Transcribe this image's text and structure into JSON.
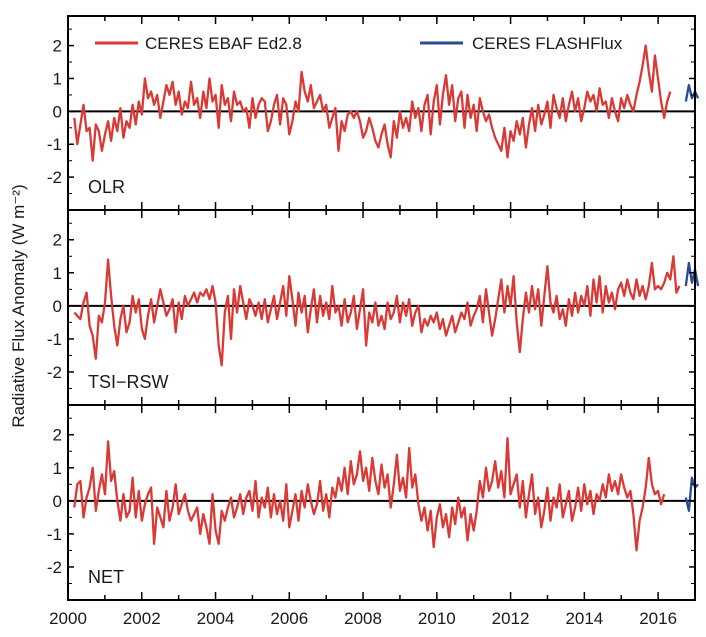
{
  "chart_data": {
    "type": "line",
    "ylabel": "Radiative Flux Anomaly (W m⁻²)",
    "xlim": [
      2000,
      2017
    ],
    "x_ticks": [
      "2000",
      "2002",
      "2004",
      "2006",
      "2008",
      "2010",
      "2012",
      "2014",
      "2016"
    ],
    "legend": {
      "placement": "top",
      "entries": [
        {
          "label": "CERES EBAF Ed2.8",
          "color": "#d93a35"
        },
        {
          "label": "CERES FLASHFlux",
          "color": "#2b4a96"
        }
      ]
    },
    "panels": [
      {
        "name": "OLR",
        "ylim": [
          -3,
          2.9
        ],
        "y_ticks": [
          "-2",
          "-1",
          "0",
          "1",
          "2"
        ],
        "series": [
          {
            "name": "CERES EBAF Ed2.8",
            "x_start": 2000.17,
            "x_step": 0.0833,
            "values": [
              -0.2,
              -1.0,
              -0.4,
              0.2,
              -0.6,
              -0.5,
              -1.5,
              -0.4,
              -0.6,
              -1.2,
              -0.7,
              -0.3,
              -0.9,
              -0.2,
              -0.6,
              0.1,
              -0.8,
              -0.3,
              -0.5,
              0.2,
              -0.4,
              0.3,
              -0.1,
              1.0,
              0.4,
              0.6,
              0.2,
              0.5,
              -0.2,
              0.3,
              0.8,
              0.5,
              0.9,
              0.2,
              0.6,
              -0.1,
              0.3,
              0.1,
              0.9,
              0.2,
              0.4,
              -0.2,
              0.6,
              0.1,
              1.0,
              0.3,
              0.5,
              -0.5,
              0.8,
              0.2,
              0.4,
              -0.3,
              0.6,
              0.2,
              0.3,
              0.0,
              0.1,
              -0.5,
              0.4,
              -0.2,
              0.2,
              0.4,
              0.3,
              -0.6,
              -0.3,
              0.2,
              0.5,
              -0.4,
              0.4,
              0.2,
              -0.7,
              -0.3,
              0.3,
              0.0,
              1.2,
              0.6,
              0.3,
              0.8,
              0.1,
              0.3,
              0.5,
              0.0,
              0.2,
              -0.5,
              -0.2,
              0.1,
              -1.2,
              -0.3,
              -0.6,
              -0.1,
              0.0,
              -0.2,
              0.0,
              -0.3,
              -0.8,
              -0.6,
              -0.2,
              -0.5,
              -0.9,
              -1.1,
              -0.7,
              -0.4,
              -1.0,
              -1.4,
              -0.3,
              -0.8,
              0.0,
              -0.5,
              -0.2,
              -0.6,
              0.3,
              -0.2,
              0.1,
              -0.6,
              0.2,
              0.5,
              -0.7,
              0.3,
              0.8,
              -0.4,
              0.5,
              1.1,
              0.2,
              0.8,
              -0.3,
              0.4,
              0.6,
              -0.5,
              0.5,
              -0.2,
              0.2,
              -0.6,
              0.4,
              0.0,
              -0.3,
              -0.1,
              -0.5,
              -0.8,
              -1.0,
              -1.2,
              -0.5,
              -1.4,
              -0.6,
              -0.9,
              -0.3,
              -0.7,
              -0.2,
              -1.1,
              -0.4,
              0.1,
              -0.6,
              0.2,
              -0.4,
              -0.1,
              0.3,
              -0.5,
              0.5,
              0.1,
              -0.2,
              0.4,
              -0.3,
              0.2,
              0.6,
              0.0,
              0.4,
              -0.3,
              0.1,
              0.6,
              0.3,
              0.5,
              0.0,
              0.7,
              0.2,
              0.3,
              -0.2,
              0.4,
              0.0,
              -0.3,
              0.4,
              0.1,
              0.5,
              0.2,
              0.0,
              0.5,
              0.9,
              1.4,
              2.0,
              1.2,
              0.6,
              1.7,
              1.0,
              0.3,
              -0.2,
              0.3,
              0.6
            ]
          },
          {
            "name": "CERES FLASHFlux",
            "x_start": 2016.75,
            "x_step": 0.0833,
            "values": [
              0.3,
              0.8,
              0.4,
              0.6,
              0.4
            ]
          }
        ]
      },
      {
        "name": "TSI−RSW",
        "ylim": [
          -3,
          2.9
        ],
        "y_ticks": [
          "-2",
          "-1",
          "0",
          "1",
          "2"
        ],
        "series": [
          {
            "name": "CERES EBAF Ed2.8",
            "x_start": 2000.17,
            "x_step": 0.0833,
            "values": [
              -0.2,
              -0.3,
              -0.4,
              0.1,
              0.4,
              -0.6,
              -0.9,
              -1.6,
              -0.3,
              -0.5,
              0.1,
              1.4,
              0.3,
              -0.6,
              -1.2,
              -0.4,
              0.0,
              -0.8,
              -0.5,
              0.3,
              -0.2,
              0.2,
              -0.7,
              -1.0,
              -0.3,
              0.2,
              -0.5,
              0.0,
              0.5,
              0.1,
              -0.3,
              -0.1,
              0.2,
              -0.8,
              0.1,
              -0.4,
              0.3,
              0.0,
              0.2,
              0.4,
              0.1,
              0.4,
              0.3,
              0.5,
              0.2,
              0.6,
              0.1,
              -1.2,
              -1.8,
              -0.2,
              0.3,
              -1.0,
              0.5,
              -0.2,
              0.6,
              0.1,
              -0.4,
              0.2,
              0.0,
              -0.3,
              0.1,
              -0.4,
              0.2,
              -0.5,
              -0.1,
              0.3,
              -0.4,
              0.1,
              0.6,
              -0.3,
              0.9,
              0.2,
              -0.6,
              0.4,
              -0.2,
              0.3,
              -0.8,
              -0.1,
              0.5,
              -0.5,
              0.3,
              -0.3,
              0.1,
              -0.4,
              0.6,
              -0.2,
              0.0,
              -0.6,
              0.2,
              -0.5,
              -0.2,
              0.3,
              -0.7,
              -0.1,
              0.5,
              -1.2,
              -0.2,
              -0.5,
              0.1,
              -0.6,
              -0.3,
              -0.7,
              0.1,
              -0.4,
              -0.2,
              0.3,
              -0.5,
              0.1,
              -0.3,
              0.2,
              -0.6,
              -0.2,
              0.0,
              -0.8,
              -0.4,
              -0.6,
              -0.3,
              -0.5,
              -0.2,
              -0.7,
              -0.4,
              -0.9,
              -0.6,
              -0.3,
              -0.8,
              -0.5,
              -0.2,
              -0.4,
              0.1,
              -0.6,
              -0.3,
              -0.1,
              0.3,
              -0.5,
              0.5,
              -0.2,
              -0.9,
              -0.4,
              0.2,
              0.8,
              -0.2,
              0.6,
              0.0,
              0.9,
              -0.5,
              -1.4,
              -0.4,
              0.4,
              -0.2,
              0.6,
              -0.1,
              0.5,
              -0.6,
              0.3,
              1.2,
              0.1,
              -0.2,
              0.3,
              -0.4,
              -0.1,
              -0.6,
              0.2,
              -0.3,
              0.4,
              -0.2,
              0.3,
              0.0,
              0.6,
              -0.3,
              0.8,
              0.1,
              0.9,
              -0.2,
              0.6,
              0.1,
              0.4,
              -0.1,
              0.5,
              0.7,
              0.3,
              0.8,
              0.4,
              0.2,
              0.8,
              0.3,
              0.6,
              0.2,
              0.6,
              1.3,
              0.5,
              0.6,
              0.5,
              0.7,
              1.0,
              0.8,
              1.5,
              0.4,
              0.6
            ]
          },
          {
            "name": "CERES FLASHFlux",
            "x_start": 2016.75,
            "x_step": 0.0833,
            "values": [
              0.6,
              1.3,
              0.7,
              1.1,
              0.6
            ]
          }
        ]
      },
      {
        "name": "NET",
        "ylim": [
          -3,
          2.9
        ],
        "y_ticks": [
          "-2",
          "-1",
          "0",
          "1",
          "2"
        ],
        "series": [
          {
            "name": "CERES EBAF Ed2.8",
            "x_start": 2000.17,
            "x_step": 0.0833,
            "values": [
              -0.2,
              0.5,
              0.6,
              -0.5,
              0.1,
              0.4,
              1.0,
              -0.3,
              0.3,
              0.8,
              0.2,
              1.8,
              0.6,
              0.9,
              0.0,
              -0.6,
              0.2,
              -0.5,
              -0.3,
              0.7,
              -0.5,
              0.3,
              -0.6,
              -0.1,
              0.2,
              0.4,
              -1.3,
              -0.2,
              -0.5,
              -0.8,
              0.3,
              -0.6,
              -0.2,
              0.5,
              -0.4,
              -0.1,
              0.2,
              -0.3,
              -0.6,
              -0.4,
              -0.2,
              -1.0,
              -0.4,
              -0.8,
              -1.3,
              0.2,
              -0.9,
              -1.3,
              -0.3,
              -0.6,
              -0.2,
              0.1,
              -0.5,
              -0.2,
              0.2,
              -0.4,
              0.1,
              0.3,
              -0.3,
              0.6,
              -0.5,
              0.1,
              -0.2,
              0.4,
              -0.5,
              0.2,
              -0.4,
              0.0,
              -0.6,
              0.5,
              -0.8,
              -0.3,
              0.2,
              -0.6,
              0.3,
              -0.2,
              0.5,
              0.0,
              -0.4,
              -0.1,
              0.6,
              -0.3,
              0.2,
              -0.5,
              0.4,
              0.1,
              0.7,
              0.3,
              1.0,
              0.2,
              1.2,
              0.5,
              0.8,
              1.5,
              0.6,
              1.0,
              0.3,
              1.3,
              0.6,
              0.2,
              1.1,
              0.4,
              0.8,
              -0.2,
              0.5,
              1.4,
              0.3,
              0.7,
              0.1,
              1.6,
              0.4,
              0.8,
              -0.1,
              -0.6,
              -0.2,
              -0.9,
              -0.3,
              -1.4,
              -0.5,
              -0.1,
              -0.8,
              -0.4,
              -1.1,
              -0.2,
              -0.7,
              0.1,
              -0.5,
              -0.2,
              -1.2,
              -0.4,
              -0.9,
              -0.3,
              0.6,
              0.1,
              1.0,
              0.3,
              0.6,
              1.2,
              0.4,
              0.9,
              0.1,
              1.9,
              0.2,
              0.5,
              0.8,
              -0.2,
              0.6,
              -0.5,
              0.2,
              0.8,
              -0.4,
              0.1,
              -0.8,
              -0.3,
              0.4,
              -0.6,
              0.1,
              -0.2,
              0.5,
              -0.5,
              -0.1,
              0.3,
              -0.6,
              -0.2,
              0.4,
              -0.3,
              0.5,
              -0.1,
              0.3,
              -0.4,
              0.2,
              0.0,
              0.5,
              0.1,
              0.8,
              0.3,
              0.6,
              0.2,
              0.8,
              0.4,
              0.1,
              0.3,
              -0.4,
              -1.5,
              -0.6,
              -0.2,
              0.4,
              1.3,
              0.5,
              0.2,
              0.3,
              -0.1,
              0.2
            ]
          },
          {
            "name": "CERES FLASHFlux",
            "x_start": 2016.75,
            "x_step": 0.0833,
            "values": [
              0.1,
              -0.3,
              0.7,
              0.4,
              0.5
            ]
          }
        ]
      }
    ]
  }
}
